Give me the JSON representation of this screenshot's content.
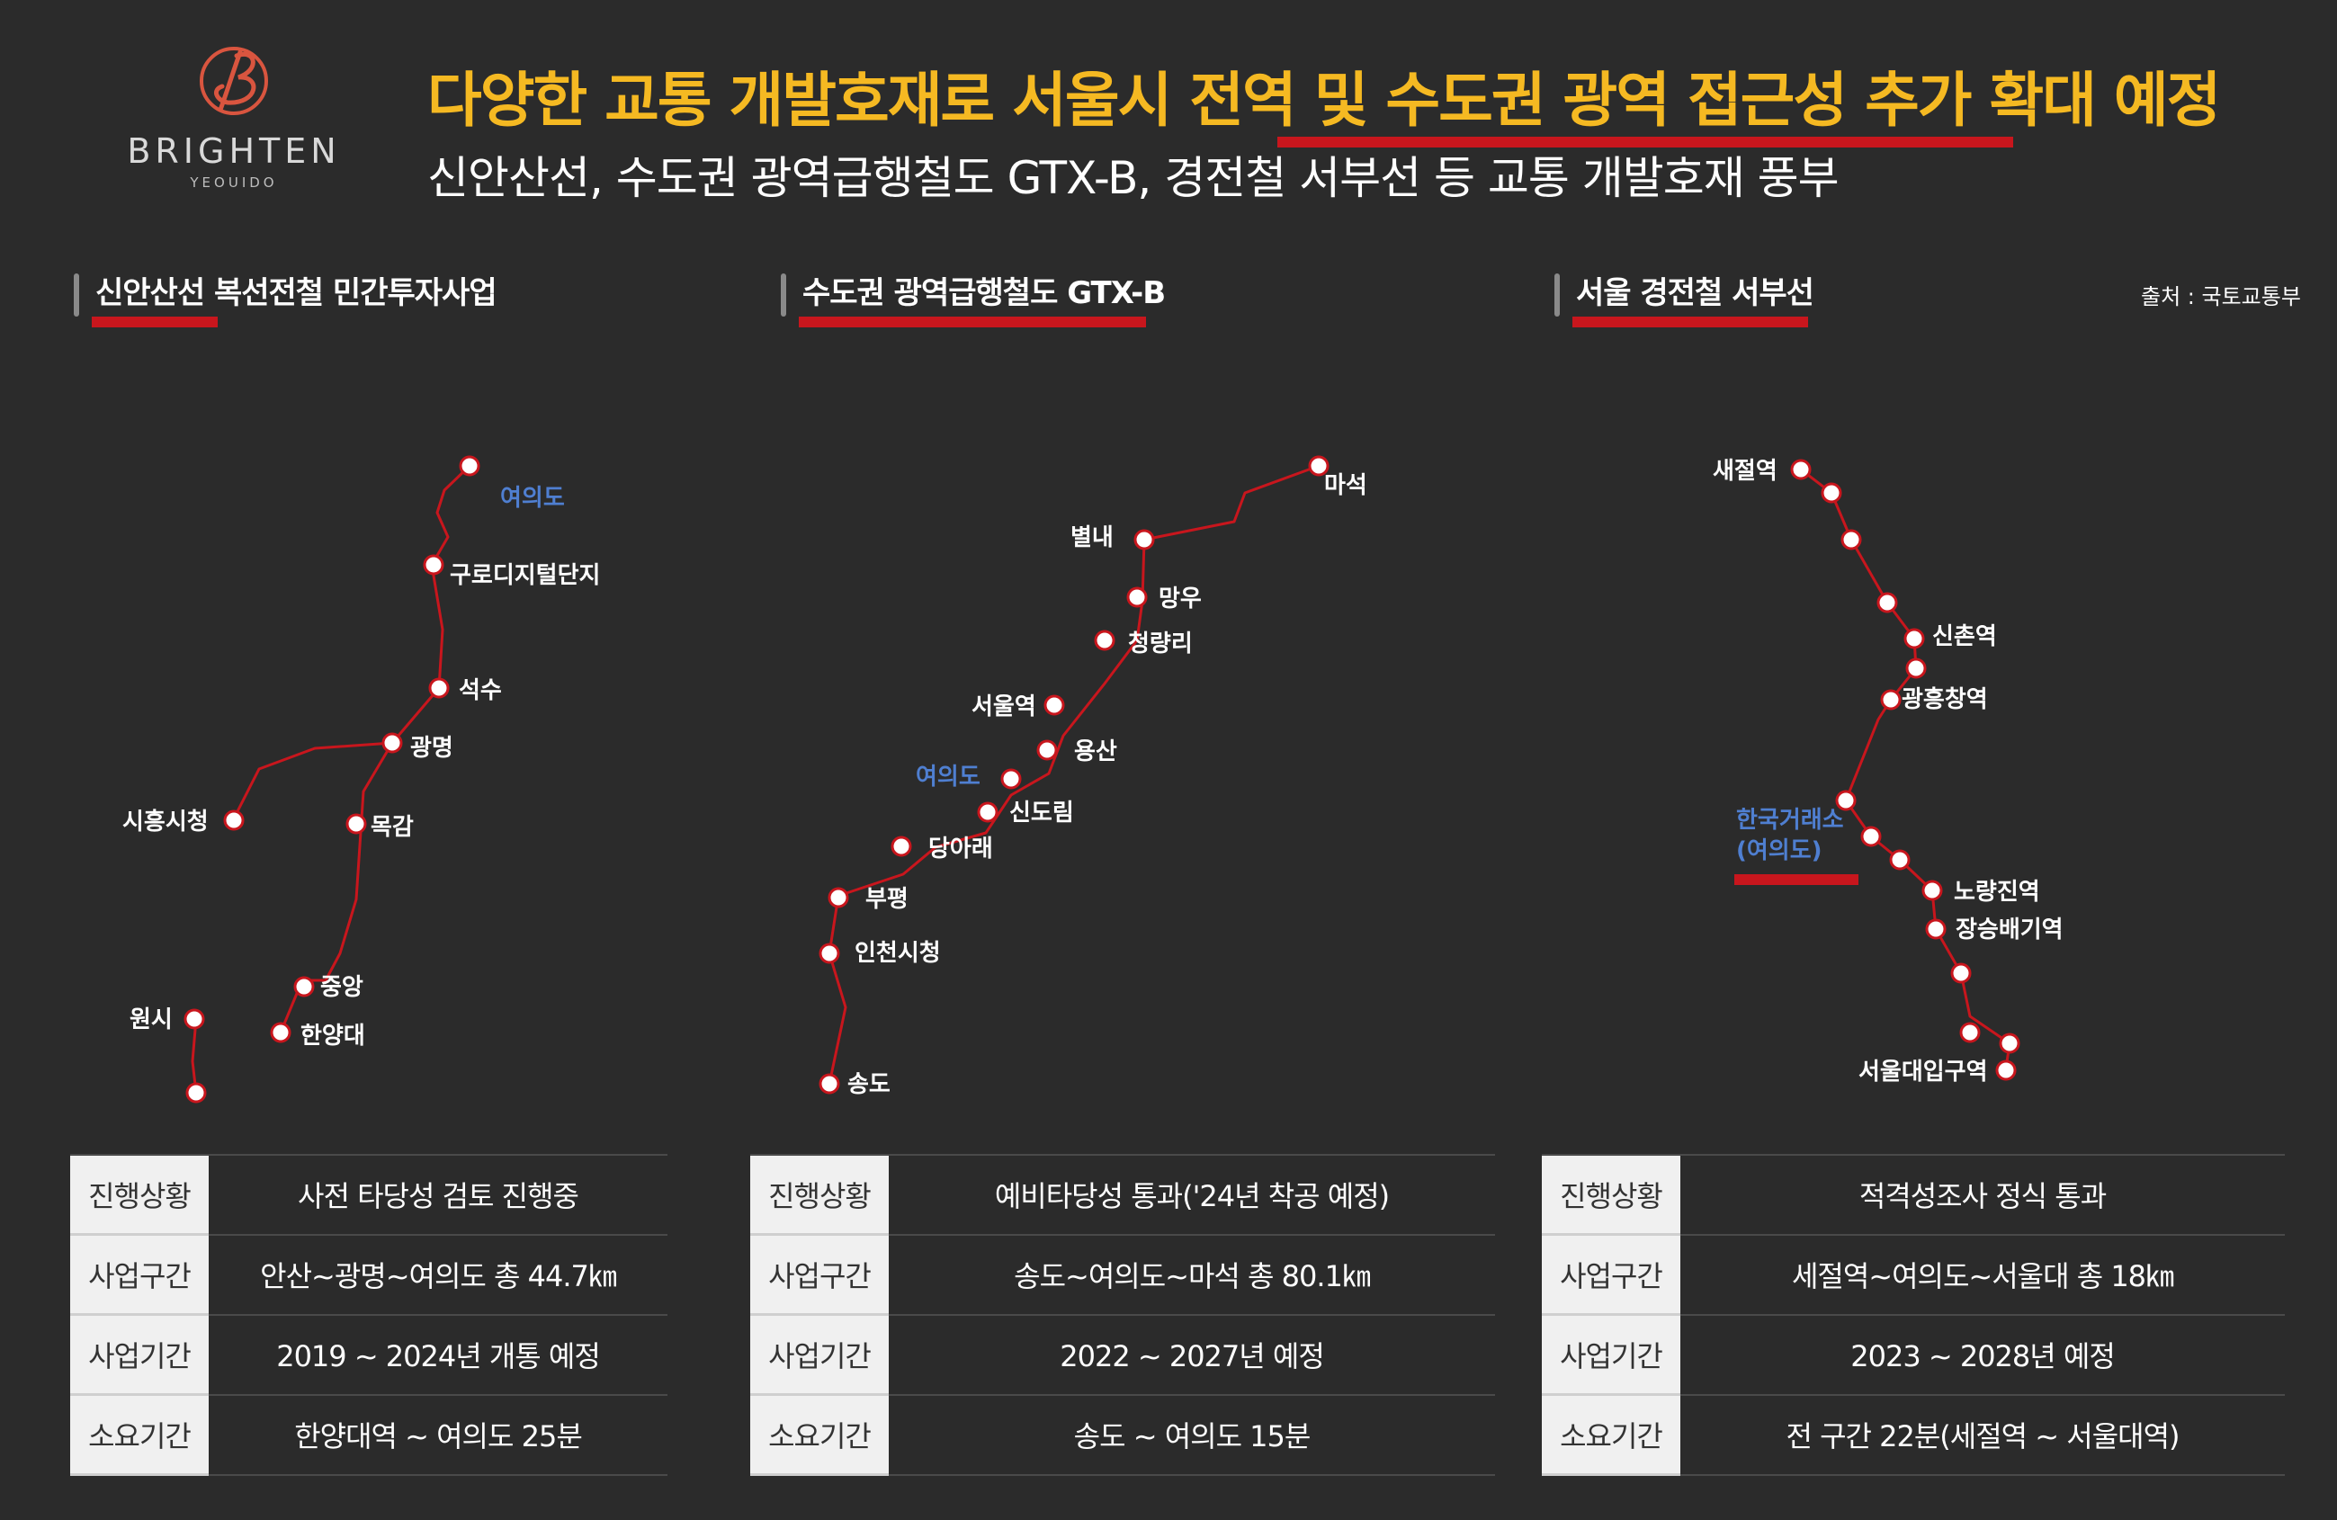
{
  "brand": {
    "name": "BRIGHTEN",
    "sub": "YEOUIDO",
    "color": "#d9553f"
  },
  "headline": "다양한 교통 개발호재로 서울시 전역 및 수도권 광역 접근성 추가 확대 예정",
  "subline": "신안산선, 수도권 광역급행철도 GTX-B, 경전철 서부선 등 교통 개발호재 풍부",
  "source": "출처 : 국토교통부",
  "colors": {
    "accent": "#f5b922",
    "line": "#c8161d",
    "highlight_station": "#4f7fd1"
  },
  "sections": [
    {
      "title": "신안산선 복선전철 민간투자사업",
      "stations": [
        "여의도",
        "구로디지털단지",
        "석수",
        "광명",
        "시흥시청",
        "목감",
        "중앙",
        "한양대",
        "원시"
      ],
      "highlight": "여의도",
      "table": [
        {
          "key": "진행상황",
          "value": "사전 타당성 검토 진행중"
        },
        {
          "key": "사업구간",
          "value": "안산~광명~여의도 총 44.7㎞"
        },
        {
          "key": "사업기간",
          "value": "2019 ~ 2024년 개통 예정"
        },
        {
          "key": "소요기간",
          "value": "한양대역 ~ 여의도 25분"
        }
      ]
    },
    {
      "title": "수도권 광역급행철도 GTX-B",
      "stations": [
        "마석",
        "별내",
        "망우",
        "청량리",
        "서울역",
        "용산",
        "여의도",
        "신도림",
        "당아래",
        "부평",
        "인천시청",
        "송도"
      ],
      "highlight": "여의도",
      "table": [
        {
          "key": "진행상황",
          "value": "예비타당성 통과('24년 착공 예정)"
        },
        {
          "key": "사업구간",
          "value": "송도~여의도~마석 총 80.1㎞"
        },
        {
          "key": "사업기간",
          "value": "2022 ~ 2027년 예정"
        },
        {
          "key": "소요기간",
          "value": "송도 ~ 여의도 15분"
        }
      ]
    },
    {
      "title": "서울 경전철 서부선",
      "stations": [
        "새절역",
        "신촌역",
        "광흥창역",
        "한국거래소",
        "(여의도)",
        "노량진역",
        "장승배기역",
        "서울대입구역"
      ],
      "highlight": "한국거래소 (여의도)",
      "table": [
        {
          "key": "진행상황",
          "value": "적격성조사 정식 통과"
        },
        {
          "key": "사업구간",
          "value": "세절역~여의도~서울대 총 18㎞"
        },
        {
          "key": "사업기간",
          "value": "2023 ~ 2028년 예정"
        },
        {
          "key": "소요기간",
          "value": "전 구간 22분(세절역 ~ 서울대역)"
        }
      ]
    }
  ]
}
